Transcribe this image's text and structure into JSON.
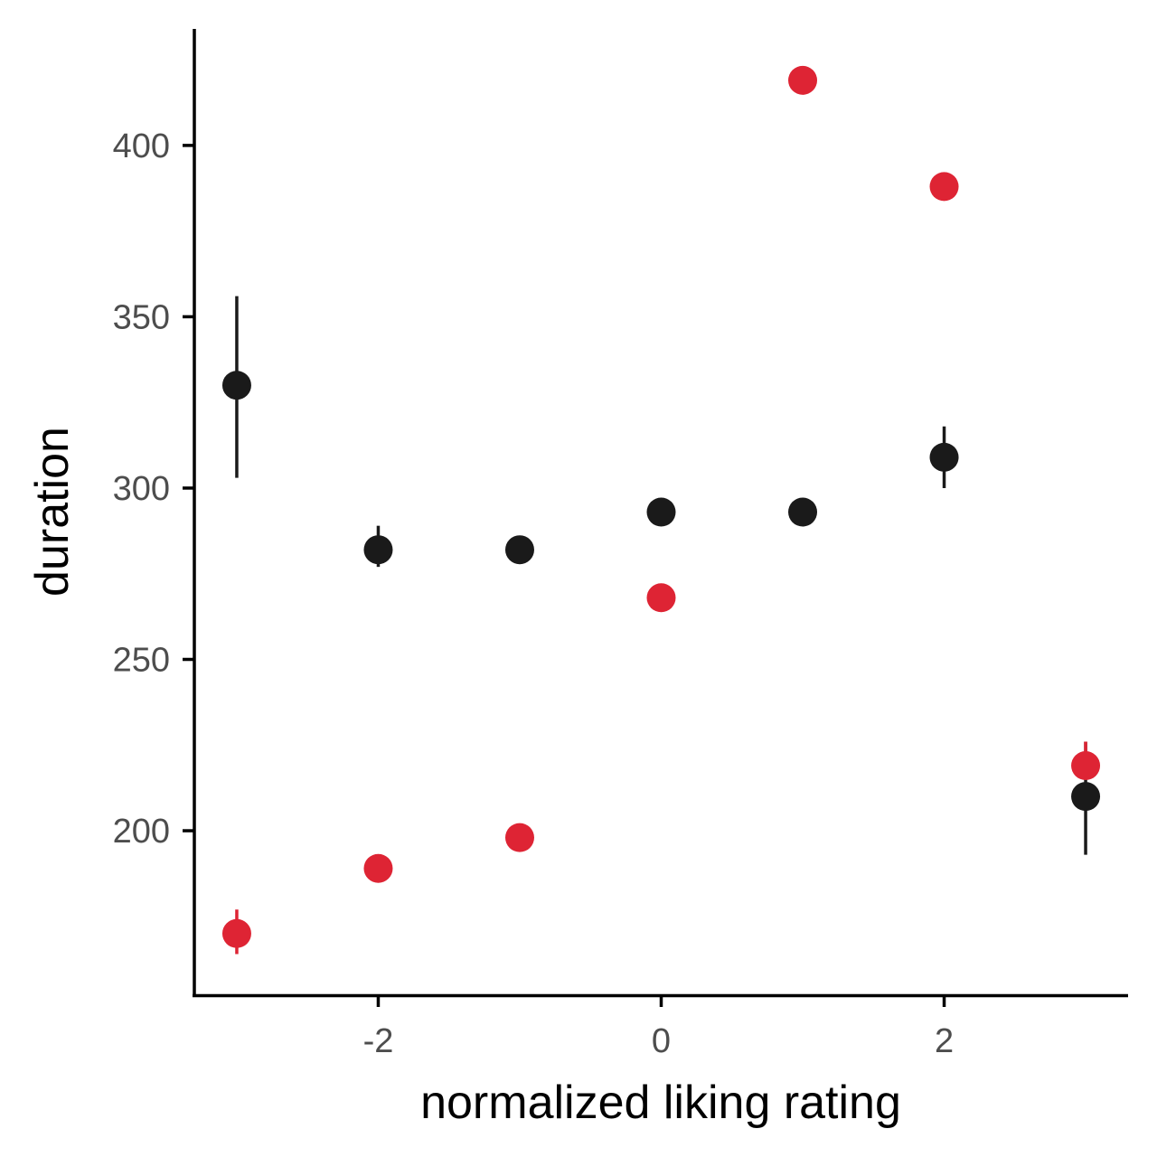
{
  "chart_data": {
    "type": "scatter",
    "xlabel": "normalized liking rating",
    "ylabel": "duration",
    "xlim": [
      -3.3,
      3.3
    ],
    "ylim": [
      152,
      434
    ],
    "x_ticks": [
      -2,
      0,
      2
    ],
    "y_ticks": [
      200,
      250,
      300,
      350,
      400
    ],
    "grid": false,
    "legend": "none",
    "series": [
      {
        "color": "#1a1a1a",
        "points": [
          {
            "x": -3,
            "y": 330,
            "ymin": 303,
            "ymax": 356
          },
          {
            "x": -2,
            "y": 282,
            "ymin": 277,
            "ymax": 289
          },
          {
            "x": -1,
            "y": 282,
            "ymin": 282,
            "ymax": 282
          },
          {
            "x": 0,
            "y": 293,
            "ymin": 293,
            "ymax": 293
          },
          {
            "x": 1,
            "y": 293,
            "ymin": 293,
            "ymax": 293
          },
          {
            "x": 2,
            "y": 309,
            "ymin": 300,
            "ymax": 318
          },
          {
            "x": 3,
            "y": 210,
            "ymin": 193,
            "ymax": 226
          }
        ]
      },
      {
        "color": "#de2434",
        "points": [
          {
            "x": -3,
            "y": 170,
            "ymin": 164,
            "ymax": 177
          },
          {
            "x": -2,
            "y": 189,
            "ymin": 189,
            "ymax": 189
          },
          {
            "x": -1,
            "y": 198,
            "ymin": 198,
            "ymax": 198
          },
          {
            "x": 0,
            "y": 268,
            "ymin": 268,
            "ymax": 268
          },
          {
            "x": 1,
            "y": 419,
            "ymin": 419,
            "ymax": 419
          },
          {
            "x": 2,
            "y": 388,
            "ymin": 388,
            "ymax": 388
          },
          {
            "x": 3,
            "y": 219,
            "ymin": 215,
            "ymax": 226
          }
        ]
      }
    ]
  }
}
